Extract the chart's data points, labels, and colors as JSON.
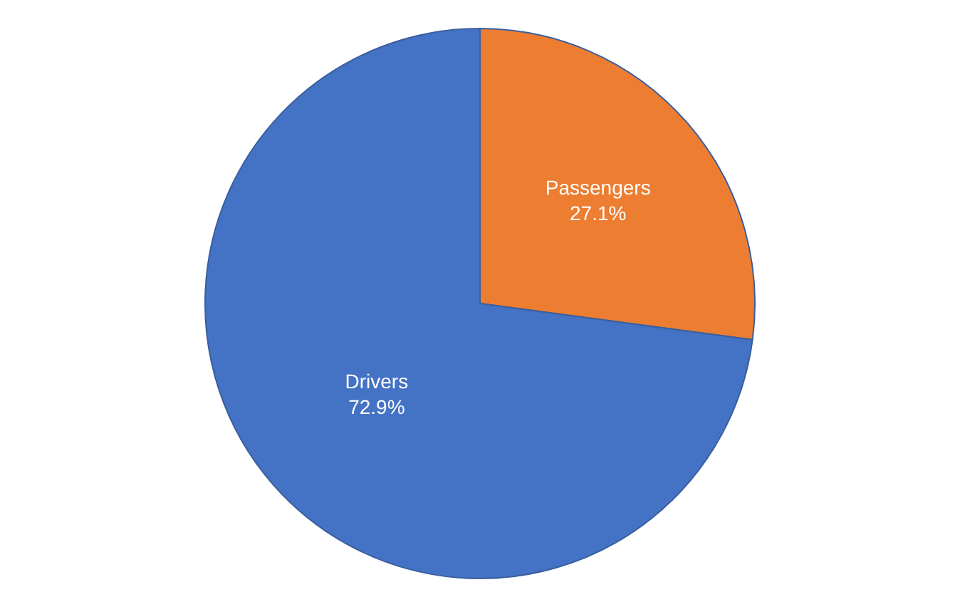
{
  "chart_data": {
    "type": "pie",
    "categories": [
      "Passengers",
      "Drivers"
    ],
    "values": [
      27.1,
      72.9
    ],
    "colors": [
      "#ed7d31",
      "#4472c4"
    ],
    "value_labels": [
      "27.1%",
      "72.9%"
    ],
    "legend": false
  }
}
